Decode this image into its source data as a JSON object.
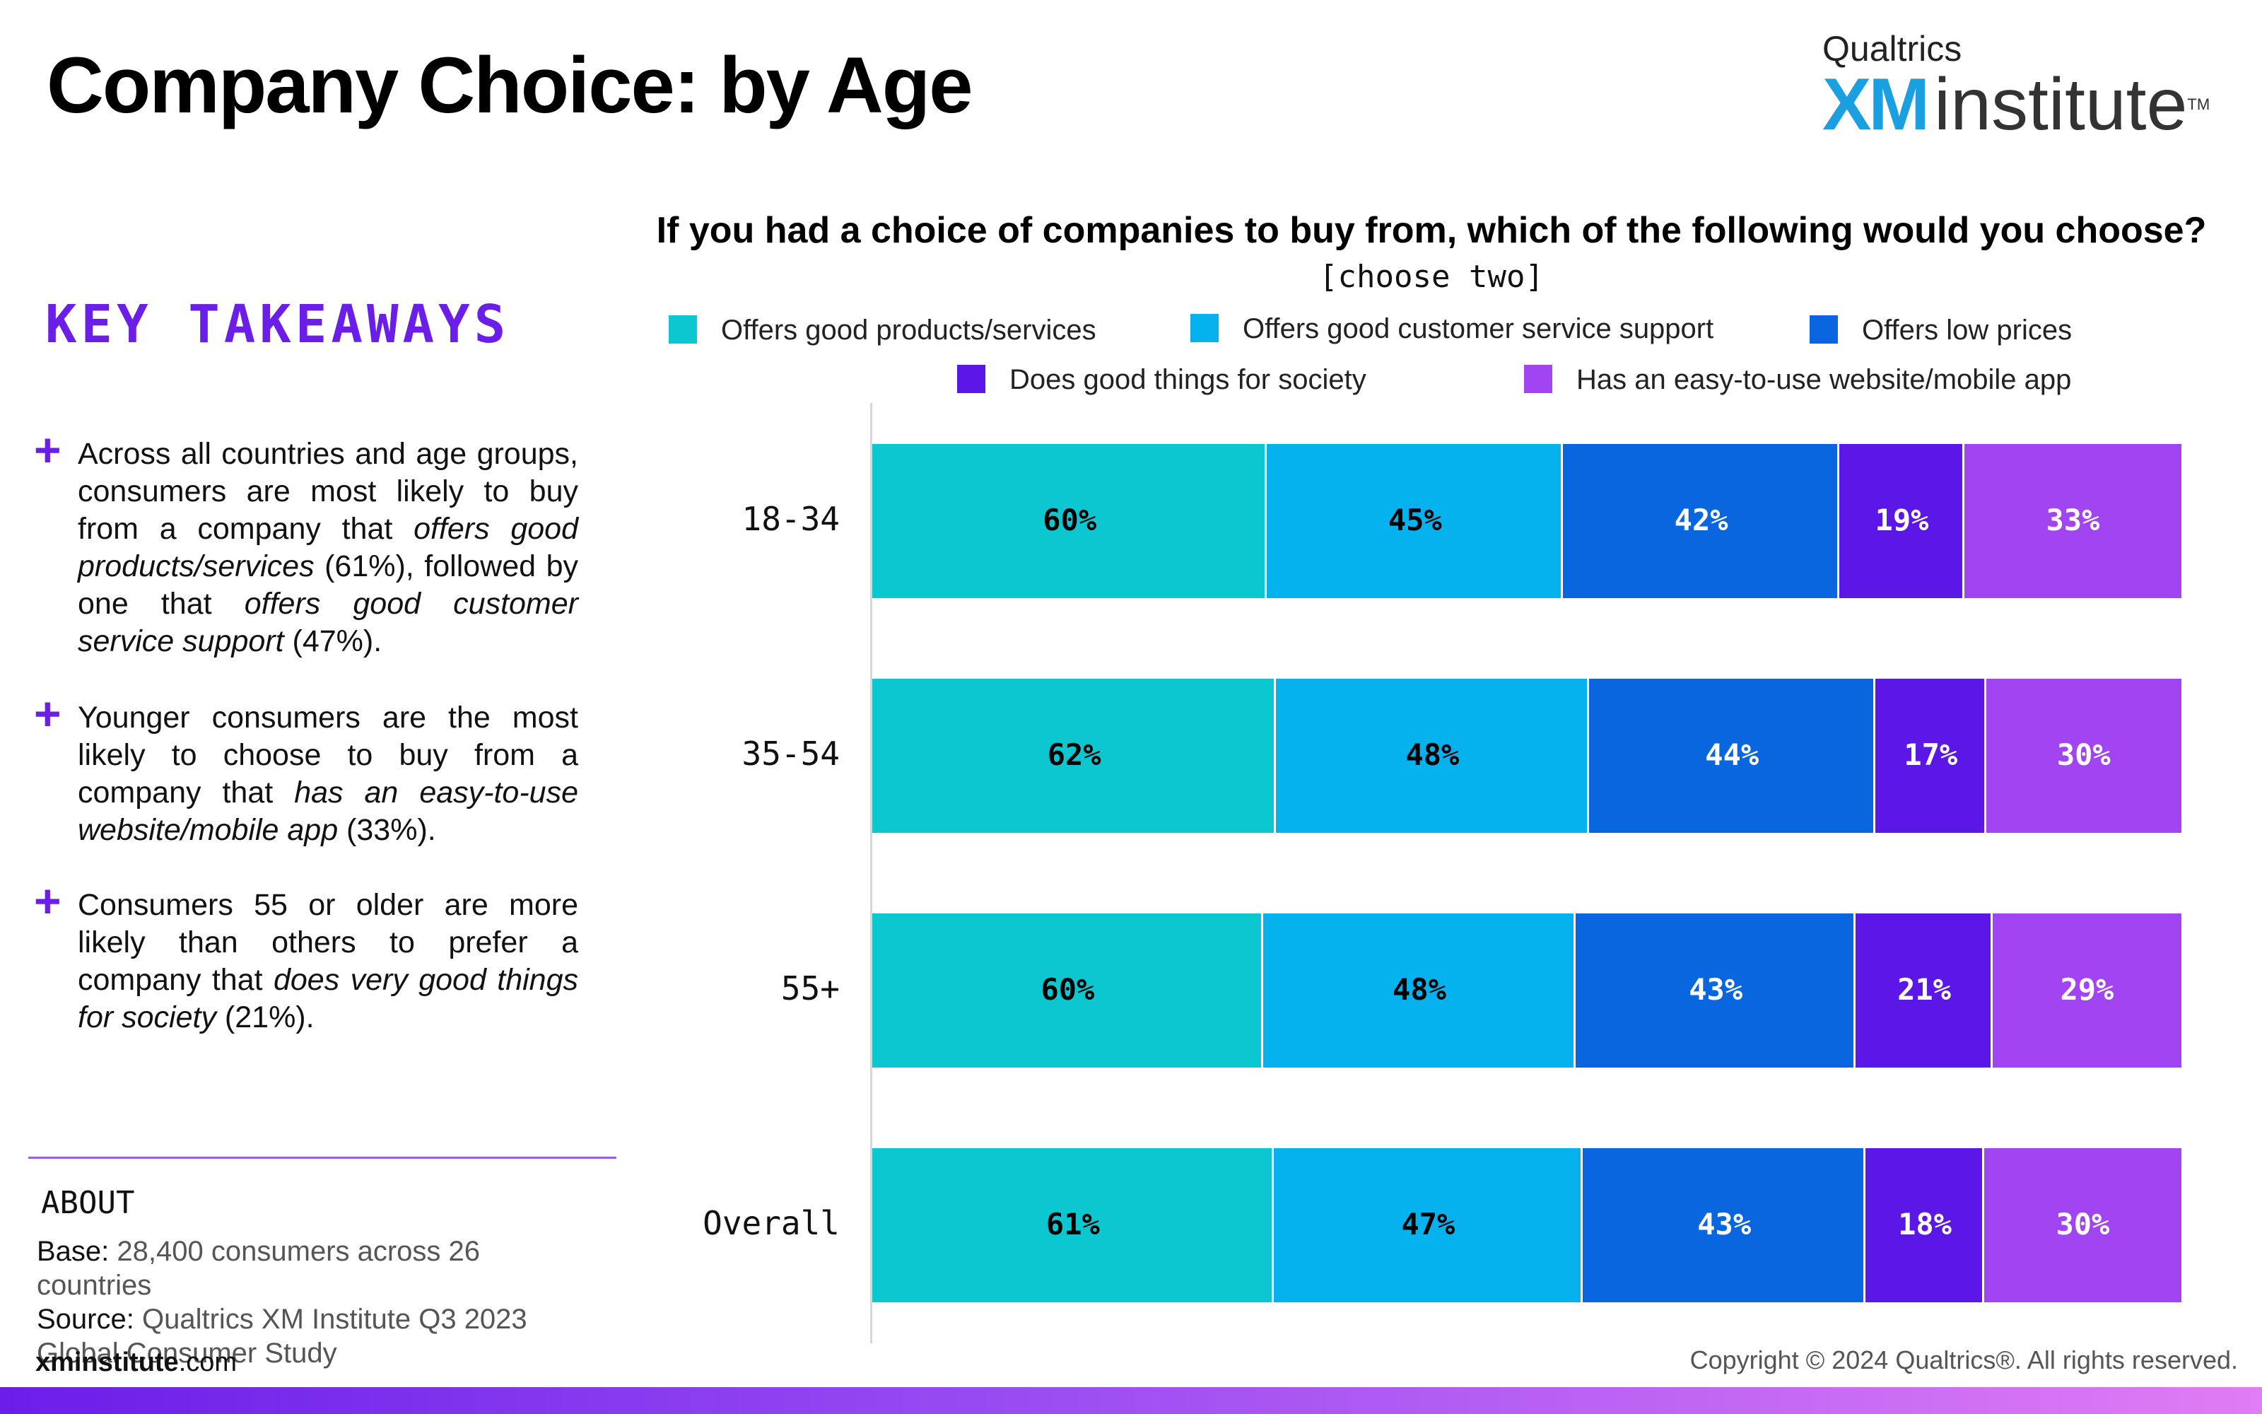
{
  "header": {
    "title": "Company Choice: by Age",
    "logo_top": "Qualtrics",
    "logo_xm": "XM",
    "logo_institute": "institute",
    "logo_tm": "TM"
  },
  "takeaways": {
    "heading": "KEY TAKEAWAYS",
    "bullet_symbol": "+"
  },
  "about": {
    "heading": "ABOUT",
    "base_label": "Base:",
    "base_value": "28,400 consumers across 26 countries",
    "source_label": "Source:",
    "source_value": "Qualtrics XM Institute Q3 2023 Global Consumer Study"
  },
  "footer": {
    "site_bold": "xminstitute",
    "site_rest": ".com",
    "copyright": "Copyright © 2024 Qualtrics®. All rights reserved."
  },
  "colors": {
    "accent": "#6a1ee8",
    "good_products": "#0cc7d0",
    "customer_service": "#05b2ee",
    "low_prices": "#0966df",
    "society": "#5b17e6",
    "website": "#a144f2"
  },
  "chart_data": {
    "type": "bar",
    "orientation": "horizontal",
    "stacked": true,
    "title": "If you had a choice of companies to buy from, which of the following would you choose?",
    "subtitle": "[choose two]",
    "categories": [
      "18-34",
      "35-54",
      "55+",
      "Overall"
    ],
    "value_format": "percent",
    "legend_position": "top",
    "series": [
      {
        "name": "Offers good products/services",
        "color": "#0cc7d0",
        "label_color": "#000000",
        "values": [
          60,
          62,
          60,
          61
        ]
      },
      {
        "name": "Offers good customer service support",
        "color": "#05b2ee",
        "label_color": "#000000",
        "values": [
          45,
          48,
          48,
          47
        ]
      },
      {
        "name": "Offers low prices",
        "color": "#0966df",
        "label_color": "#ffffff",
        "values": [
          42,
          44,
          43,
          43
        ]
      },
      {
        "name": "Does good things for society",
        "color": "#5b17e6",
        "label_color": "#ffffff",
        "values": [
          19,
          17,
          21,
          18
        ]
      },
      {
        "name": "Has an easy-to-use website/mobile app",
        "color": "#a144f2",
        "label_color": "#ffffff",
        "values": [
          33,
          30,
          29,
          30
        ]
      }
    ]
  }
}
